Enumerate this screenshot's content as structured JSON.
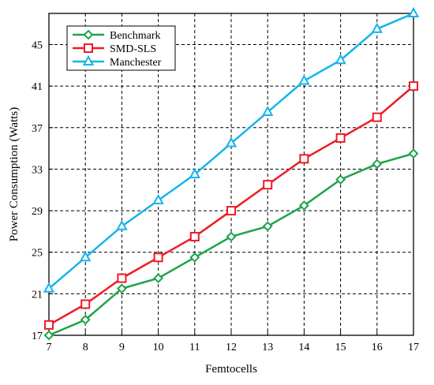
{
  "chart_data": {
    "type": "line",
    "xlabel": "Femtocells",
    "ylabel": "Power Consumption (Watts)",
    "xlim": [
      7,
      17
    ],
    "ylim": [
      17,
      48
    ],
    "x_ticks": [
      "7",
      "8",
      "9",
      "10",
      "11",
      "12",
      "13",
      "14",
      "15",
      "16",
      "17"
    ],
    "y_ticks": [
      "17",
      "21",
      "25",
      "29",
      "33",
      "37",
      "41",
      "45"
    ],
    "grid": "dashed",
    "legend_position": "top-left",
    "x": [
      7,
      8,
      9,
      10,
      11,
      12,
      13,
      14,
      15,
      16,
      17
    ],
    "series": [
      {
        "name": "Benchmark",
        "color": "#1fa34a",
        "marker": "diamond",
        "values": [
          17.0,
          18.5,
          21.5,
          22.5,
          24.5,
          26.5,
          27.5,
          29.5,
          32.0,
          33.5,
          34.5
        ]
      },
      {
        "name": "SMD-SLS",
        "color": "#ee1c25",
        "marker": "square",
        "values": [
          18.0,
          20.0,
          22.5,
          24.5,
          26.5,
          29.0,
          31.5,
          34.0,
          36.0,
          38.0,
          41.0
        ]
      },
      {
        "name": "Manchester",
        "color": "#16b4ea",
        "marker": "triangle",
        "values": [
          21.5,
          24.5,
          27.5,
          30.0,
          32.5,
          35.5,
          38.5,
          41.5,
          43.5,
          46.5,
          48.0
        ]
      }
    ]
  }
}
